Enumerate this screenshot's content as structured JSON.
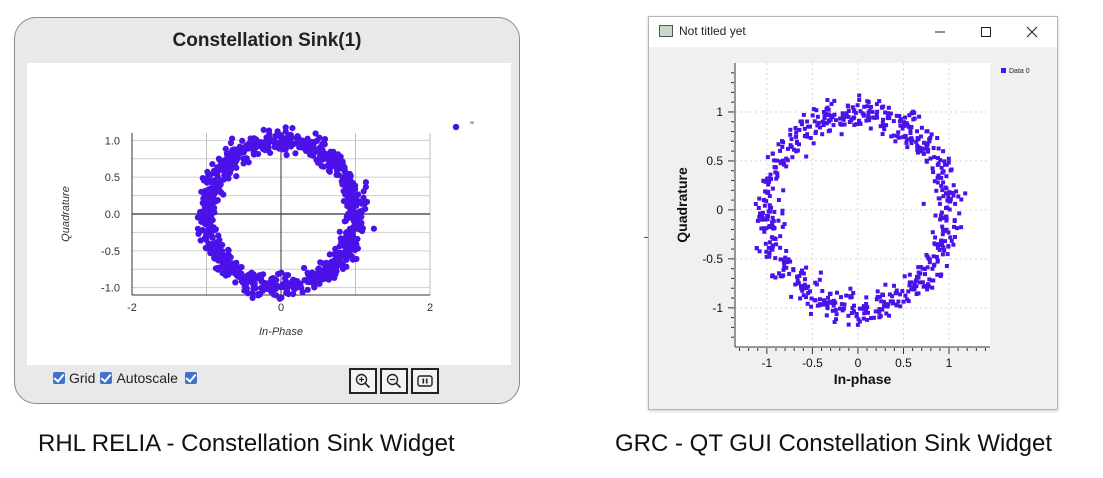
{
  "relia": {
    "title": "Constellation Sink(1)",
    "legend_label": "\"",
    "controls": {
      "grid_label": "Grid",
      "autoscale_label": "Autoscale"
    },
    "buttons": [
      "zoom-in",
      "zoom-out",
      "pause"
    ],
    "point_color": "#4a12e8"
  },
  "grc": {
    "window_title": "Not titled yet",
    "legend_label": "Data 0",
    "point_color": "#4a12e8"
  },
  "captions": {
    "left": "RHL RELIA - Constellation Sink Widget",
    "right": "GRC - QT GUI Constellation Sink Widget"
  },
  "chart_data": [
    {
      "type": "scatter",
      "title": "Constellation Sink(1)",
      "xlabel": "In-Phase",
      "ylabel": "Quadrature",
      "xlim": [
        -2,
        2
      ],
      "ylim": [
        -1.1,
        1.1
      ],
      "xticks": [
        "-2",
        "0",
        "2"
      ],
      "yticks": [
        "1.0",
        "0.5",
        "0.0",
        "-0.5",
        "-1.0"
      ],
      "grid": true,
      "legend": "top-right",
      "series": [
        {
          "name": "\"",
          "distribution": "ring",
          "radius": 1.0,
          "spread": 0.07,
          "count": 900
        }
      ]
    },
    {
      "type": "scatter",
      "title": "",
      "xlabel": "In-phase",
      "ylabel": "Quadrature",
      "xlim": [
        -1.35,
        1.45
      ],
      "ylim": [
        -1.4,
        1.5
      ],
      "xticks": [
        "-1",
        "-0.5",
        "0",
        "0.5",
        "1"
      ],
      "yticks": [
        "1",
        "0.5",
        "0",
        "-0.5",
        "-1"
      ],
      "grid": true,
      "legend": "top-right",
      "series": [
        {
          "name": "Data 0",
          "distribution": "ring",
          "radius": 1.0,
          "spread": 0.08,
          "count": 650
        }
      ]
    }
  ]
}
